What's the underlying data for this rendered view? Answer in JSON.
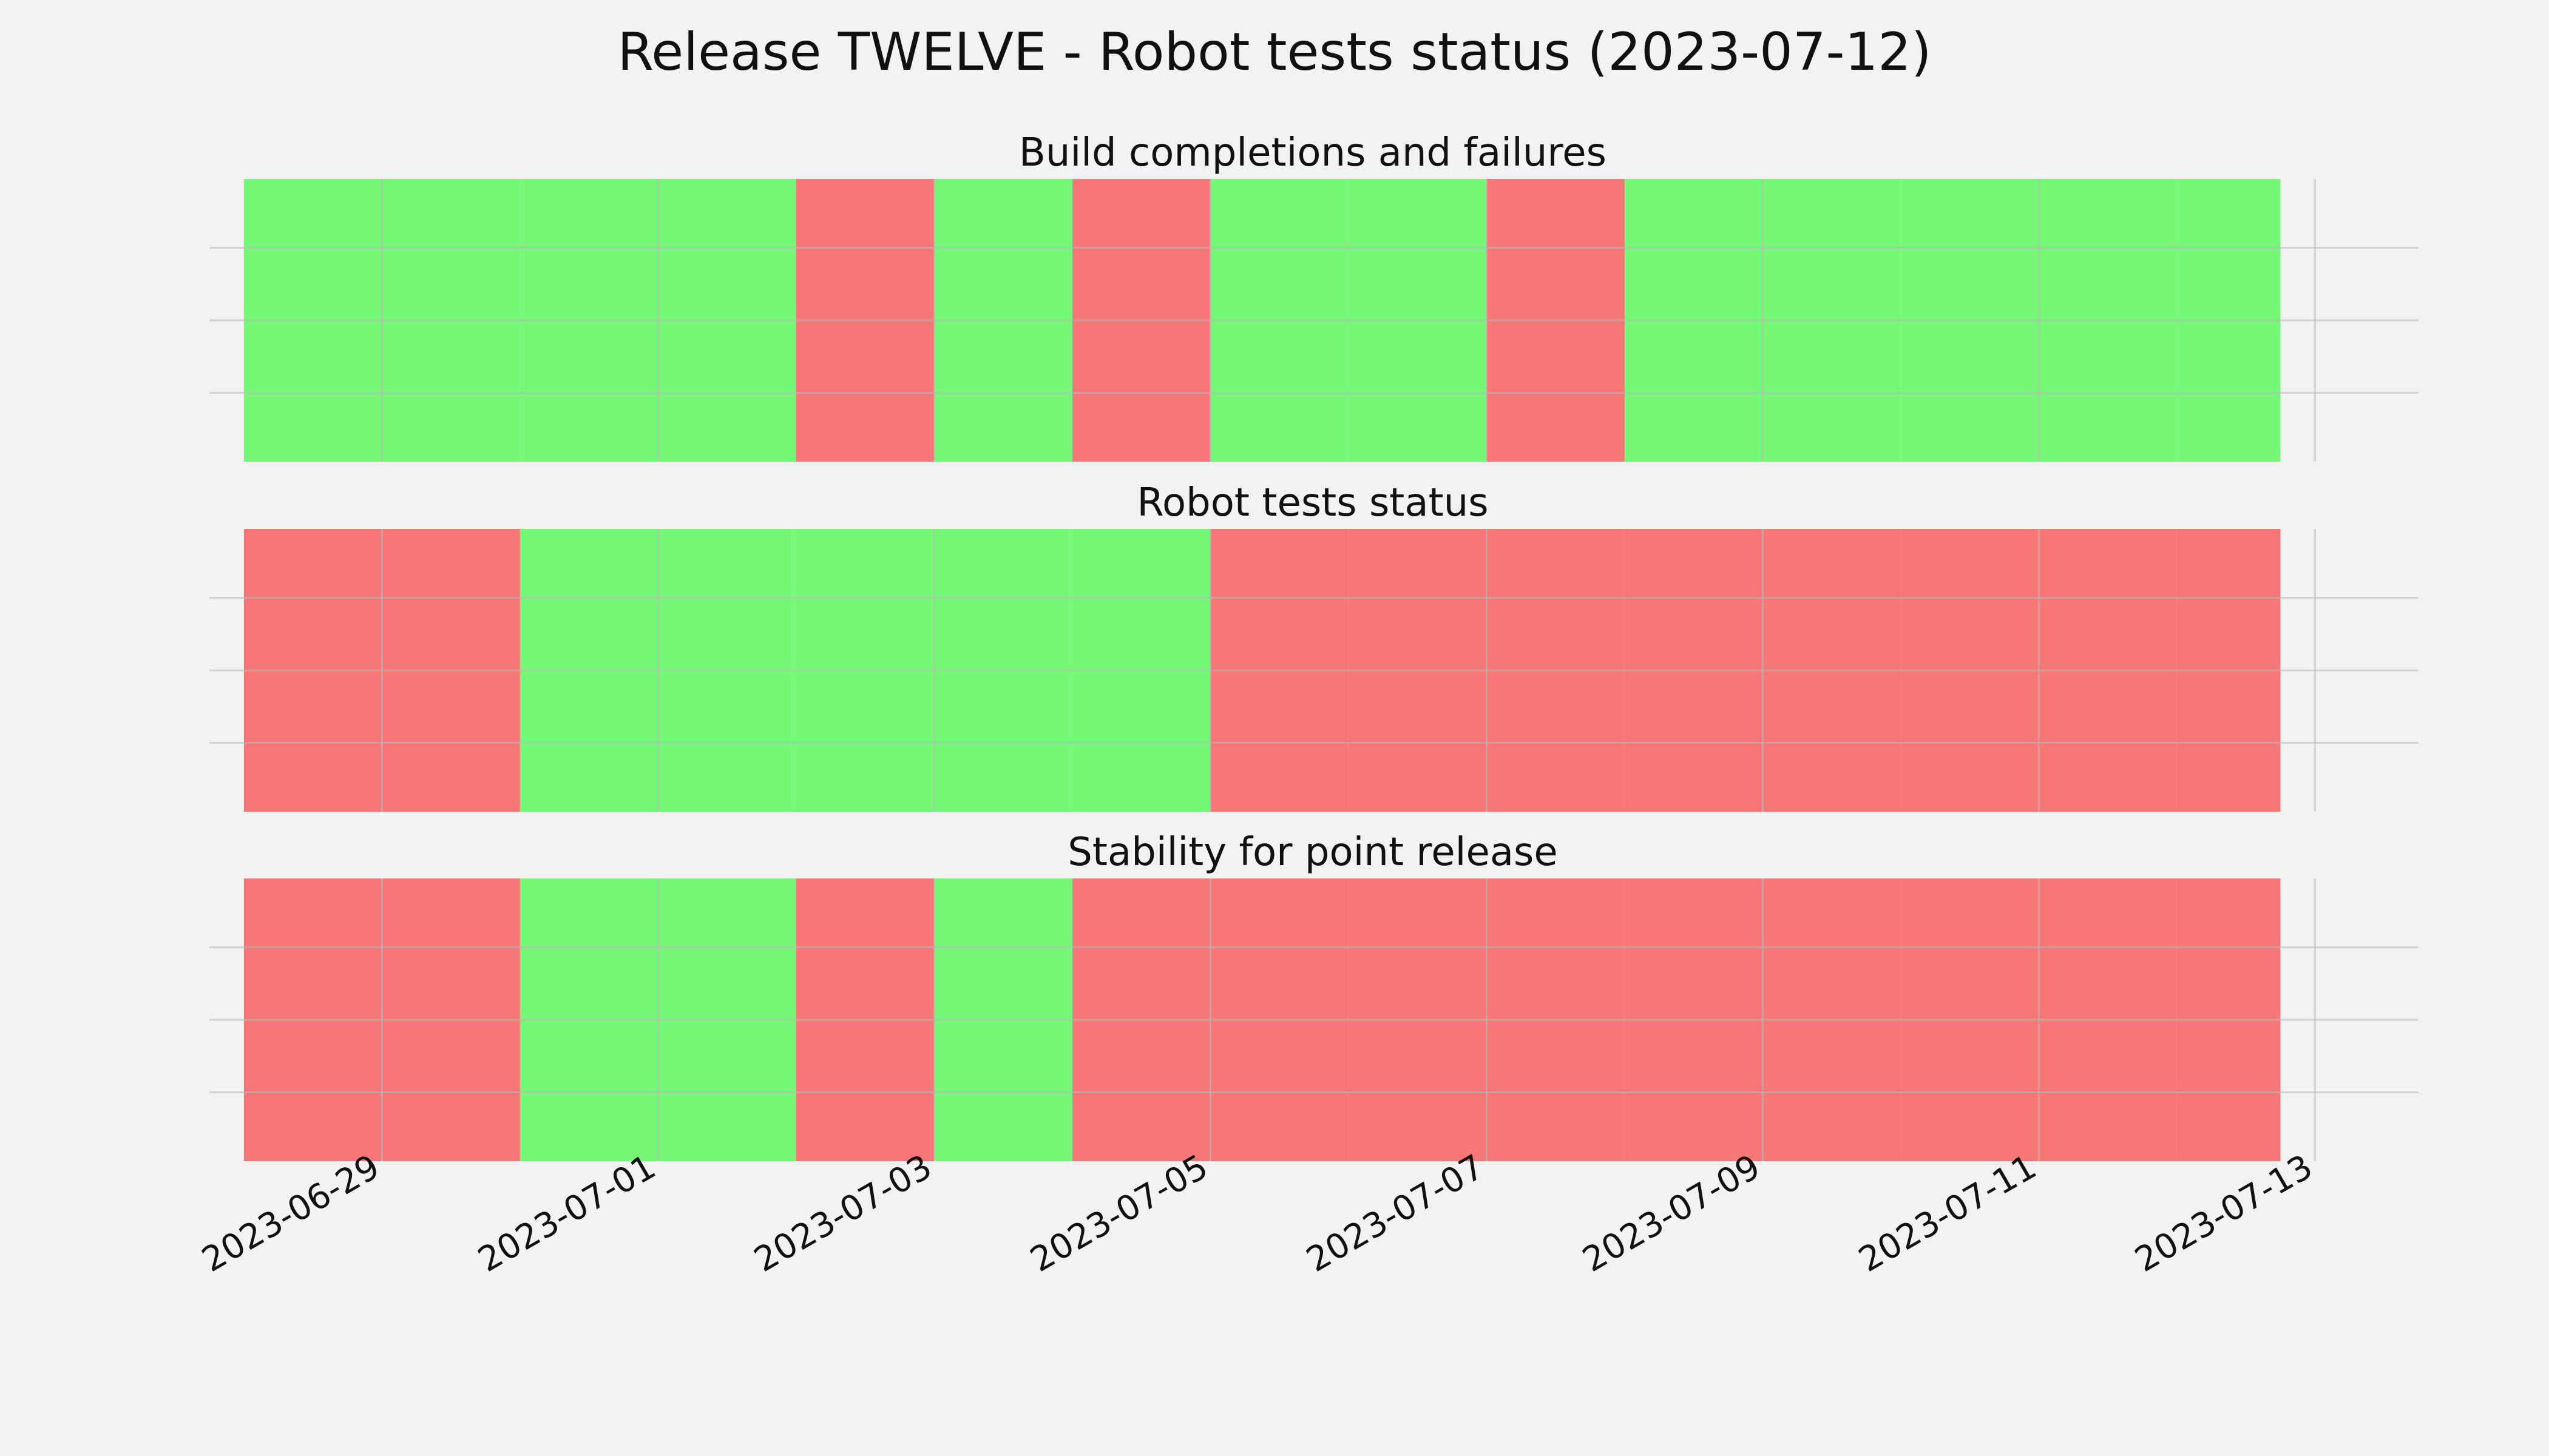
{
  "chart_data": {
    "type": "timeline",
    "title": "Release TWELVE - Robot tests status (2023-07-12)",
    "x_range": [
      "2023-06-27T18:00",
      "2023-07-13T18:00"
    ],
    "data_range": [
      "2023-06-28",
      "2023-07-12T18:00"
    ],
    "x_ticks": [
      "2023-06-29",
      "2023-07-01",
      "2023-07-03",
      "2023-07-05",
      "2023-07-07",
      "2023-07-09",
      "2023-07-11",
      "2023-07-13"
    ],
    "grid": true,
    "colors": {
      "pass": "#77f777",
      "fail": "#f77777",
      "background": "#f2f2f2",
      "grid": "#cccccc"
    },
    "panels": [
      {
        "title": "Build completions and failures",
        "days": [
          {
            "date": "2023-06-28",
            "status": "pass"
          },
          {
            "date": "2023-06-29",
            "status": "pass"
          },
          {
            "date": "2023-06-30",
            "status": "pass"
          },
          {
            "date": "2023-07-01",
            "status": "pass"
          },
          {
            "date": "2023-07-02",
            "status": "fail"
          },
          {
            "date": "2023-07-03",
            "status": "pass"
          },
          {
            "date": "2023-07-04",
            "status": "fail"
          },
          {
            "date": "2023-07-05",
            "status": "pass"
          },
          {
            "date": "2023-07-06",
            "status": "pass"
          },
          {
            "date": "2023-07-07",
            "status": "fail"
          },
          {
            "date": "2023-07-08",
            "status": "pass"
          },
          {
            "date": "2023-07-09",
            "status": "pass"
          },
          {
            "date": "2023-07-10",
            "status": "pass"
          },
          {
            "date": "2023-07-11",
            "status": "pass"
          },
          {
            "date": "2023-07-12",
            "status": "pass"
          }
        ]
      },
      {
        "title": "Robot tests status",
        "days": [
          {
            "date": "2023-06-28",
            "status": "fail"
          },
          {
            "date": "2023-06-29",
            "status": "fail"
          },
          {
            "date": "2023-06-30",
            "status": "pass"
          },
          {
            "date": "2023-07-01",
            "status": "pass"
          },
          {
            "date": "2023-07-02",
            "status": "pass"
          },
          {
            "date": "2023-07-03",
            "status": "pass"
          },
          {
            "date": "2023-07-04",
            "status": "pass"
          },
          {
            "date": "2023-07-05",
            "status": "fail"
          },
          {
            "date": "2023-07-06",
            "status": "fail"
          },
          {
            "date": "2023-07-07",
            "status": "fail"
          },
          {
            "date": "2023-07-08",
            "status": "fail"
          },
          {
            "date": "2023-07-09",
            "status": "fail"
          },
          {
            "date": "2023-07-10",
            "status": "fail"
          },
          {
            "date": "2023-07-11",
            "status": "fail"
          },
          {
            "date": "2023-07-12",
            "status": "fail"
          }
        ]
      },
      {
        "title": "Stability for point release",
        "days": [
          {
            "date": "2023-06-28",
            "status": "fail"
          },
          {
            "date": "2023-06-29",
            "status": "fail"
          },
          {
            "date": "2023-06-30",
            "status": "pass"
          },
          {
            "date": "2023-07-01",
            "status": "pass"
          },
          {
            "date": "2023-07-02",
            "status": "fail"
          },
          {
            "date": "2023-07-03",
            "status": "pass"
          },
          {
            "date": "2023-07-04",
            "status": "fail"
          },
          {
            "date": "2023-07-05",
            "status": "fail"
          },
          {
            "date": "2023-07-06",
            "status": "fail"
          },
          {
            "date": "2023-07-07",
            "status": "fail"
          },
          {
            "date": "2023-07-08",
            "status": "fail"
          },
          {
            "date": "2023-07-09",
            "status": "fail"
          },
          {
            "date": "2023-07-10",
            "status": "fail"
          },
          {
            "date": "2023-07-11",
            "status": "fail"
          },
          {
            "date": "2023-07-12",
            "status": "fail"
          }
        ]
      }
    ]
  }
}
